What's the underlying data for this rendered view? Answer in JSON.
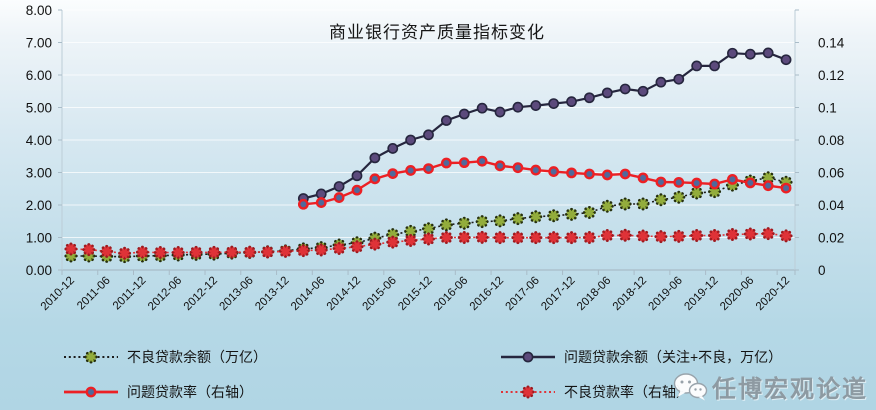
{
  "title": "商业银行资产质量指标变化",
  "watermark": {
    "text": "任博宏观论道",
    "icon": "wechat-icon"
  },
  "legend": {
    "items": [
      {
        "label": "不良贷款余额（万亿）"
      },
      {
        "label": "问题贷款余额（关注+不良，万亿）"
      },
      {
        "label": "问题贷款率（右轴）"
      },
      {
        "label": "不良贷款率（右轴）"
      }
    ]
  },
  "chart_data": {
    "type": "line",
    "grid": true,
    "left_axis": {
      "min": 0,
      "max": 8,
      "tick_labels": [
        "0.00",
        "1.00",
        "2.00",
        "3.00",
        "4.00",
        "5.00",
        "6.00",
        "7.00",
        "8.00"
      ]
    },
    "right_axis": {
      "min": 0,
      "max": 0.14,
      "tick_labels": [
        "0",
        "0.02",
        "0.04",
        "0.06",
        "0.08",
        "0.1",
        "0.12",
        "0.14"
      ]
    },
    "categories": [
      "2010-12",
      "2011-03",
      "2011-06",
      "2011-09",
      "2011-12",
      "2012-03",
      "2012-06",
      "2012-09",
      "2012-12",
      "2013-03",
      "2013-06",
      "2013-09",
      "2013-12",
      "2014-03",
      "2014-06",
      "2014-09",
      "2014-12",
      "2015-03",
      "2015-06",
      "2015-09",
      "2015-12",
      "2016-03",
      "2016-06",
      "2016-09",
      "2016-12",
      "2017-03",
      "2017-06",
      "2017-09",
      "2017-12",
      "2018-03",
      "2018-06",
      "2018-09",
      "2018-12",
      "2019-03",
      "2019-06",
      "2019-09",
      "2019-12",
      "2020-03",
      "2020-06",
      "2020-09",
      "2020-12"
    ],
    "x_tick_labels": [
      "2010-12",
      "2011-06",
      "2011-12",
      "2012-06",
      "2012-12",
      "2013-06",
      "2013-12",
      "2014-06",
      "2014-12",
      "2015-06",
      "2015-12",
      "2016-06",
      "2016-12",
      "2017-06",
      "2017-12",
      "2018-06",
      "2018-12",
      "2019-06",
      "2019-12",
      "2020-06",
      "2020-12"
    ],
    "series": [
      {
        "name": "不良贷款余额（万亿）",
        "axis": "left",
        "start_index": 0,
        "line": {
          "color": "#1c1c1c",
          "width": 1.6,
          "style": "dotted"
        },
        "marker": {
          "shape": "flower",
          "main": "#93ad3c",
          "edge": "#26300f",
          "size": 4.4
        },
        "values": [
          0.43,
          0.43,
          0.42,
          0.41,
          0.43,
          0.44,
          0.46,
          0.48,
          0.49,
          0.52,
          0.54,
          0.56,
          0.59,
          0.65,
          0.69,
          0.77,
          0.84,
          0.98,
          1.09,
          1.19,
          1.27,
          1.39,
          1.44,
          1.49,
          1.51,
          1.58,
          1.64,
          1.67,
          1.71,
          1.77,
          1.96,
          2.03,
          2.03,
          2.16,
          2.24,
          2.37,
          2.41,
          2.61,
          2.74,
          2.84,
          2.7
        ]
      },
      {
        "name": "问题贷款余额（关注+不良，万亿）",
        "axis": "left",
        "start_index": 13,
        "line": {
          "color": "#26263e",
          "width": 2.2,
          "style": "solid"
        },
        "marker": {
          "shape": "circle",
          "main": "#5c4a7c",
          "edge": "#26263e",
          "size": 4.6,
          "edge_width": 1.6
        },
        "values": [
          2.2,
          2.34,
          2.57,
          2.9,
          3.45,
          3.74,
          4.0,
          4.16,
          4.6,
          4.8,
          4.98,
          4.86,
          5.01,
          5.06,
          5.12,
          5.18,
          5.3,
          5.45,
          5.57,
          5.5,
          5.78,
          5.87,
          6.28,
          6.28,
          6.67,
          6.64,
          6.68,
          6.47
        ]
      },
      {
        "name": "问题贷款率（右轴）",
        "axis": "right",
        "start_index": 13,
        "line": {
          "color": "#ec2024",
          "width": 2.4,
          "style": "solid"
        },
        "marker": {
          "shape": "circle",
          "main": "#50699b",
          "edge": "#ec2024",
          "size": 4.2,
          "edge_width": 2.4
        },
        "values": [
          0.0354,
          0.0363,
          0.039,
          0.043,
          0.0491,
          0.0519,
          0.0536,
          0.0546,
          0.0576,
          0.0578,
          0.0586,
          0.0561,
          0.0551,
          0.0538,
          0.053,
          0.0523,
          0.0517,
          0.0512,
          0.0517,
          0.0496,
          0.0474,
          0.0472,
          0.0468,
          0.0463,
          0.0488,
          0.0469,
          0.0454,
          0.0441
        ]
      },
      {
        "name": "不良贷款率（右轴）",
        "axis": "right",
        "start_index": 0,
        "line": {
          "color": "#e03338",
          "width": 1.6,
          "style": "dotted"
        },
        "marker": {
          "shape": "flower",
          "main": "#df3338",
          "edge": "#9b1b20",
          "size": 4.4
        },
        "values": [
          0.0113,
          0.011,
          0.01,
          0.009,
          0.0096,
          0.0094,
          0.0094,
          0.0095,
          0.0095,
          0.0096,
          0.0096,
          0.0097,
          0.01,
          0.0104,
          0.0108,
          0.0116,
          0.0125,
          0.0139,
          0.015,
          0.0159,
          0.0167,
          0.0175,
          0.0175,
          0.0176,
          0.0174,
          0.0174,
          0.0174,
          0.0174,
          0.0174,
          0.0175,
          0.0186,
          0.0187,
          0.0183,
          0.018,
          0.0181,
          0.0186,
          0.0186,
          0.0191,
          0.0194,
          0.0196,
          0.0184
        ]
      }
    ]
  }
}
